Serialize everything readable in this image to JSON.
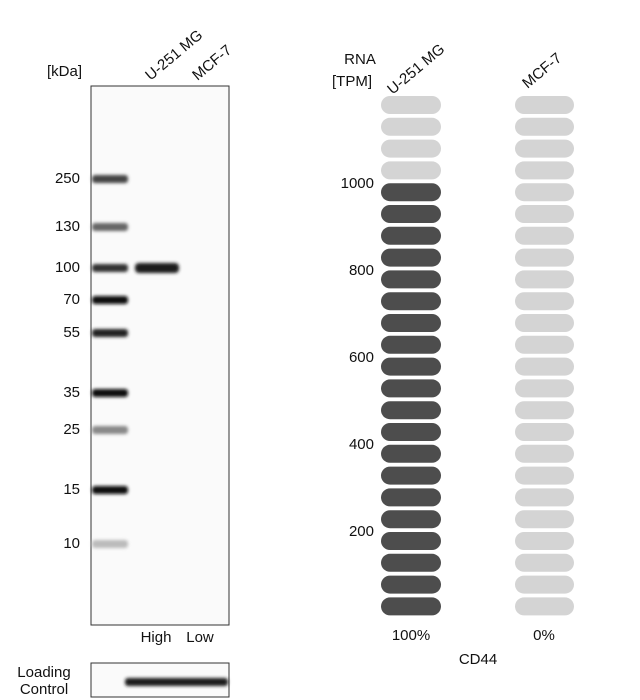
{
  "blot": {
    "unit": "[kDa]",
    "lanes": [
      "U-251 MG",
      "MCF-7"
    ],
    "markers": [
      "250",
      "130",
      "100",
      "70",
      "55",
      "35",
      "25",
      "15",
      "10"
    ],
    "levels": [
      "High",
      "Low"
    ],
    "loading_control": [
      "Loading",
      "Control"
    ]
  },
  "rna": {
    "unit": [
      "RNA",
      "[TPM]"
    ],
    "samples": [
      "U-251 MG",
      "MCF-7"
    ],
    "ticks": [
      "1000",
      "800",
      "600",
      "400",
      "200"
    ],
    "percentages": [
      "100%",
      "0%"
    ],
    "gene": "CD44"
  }
}
